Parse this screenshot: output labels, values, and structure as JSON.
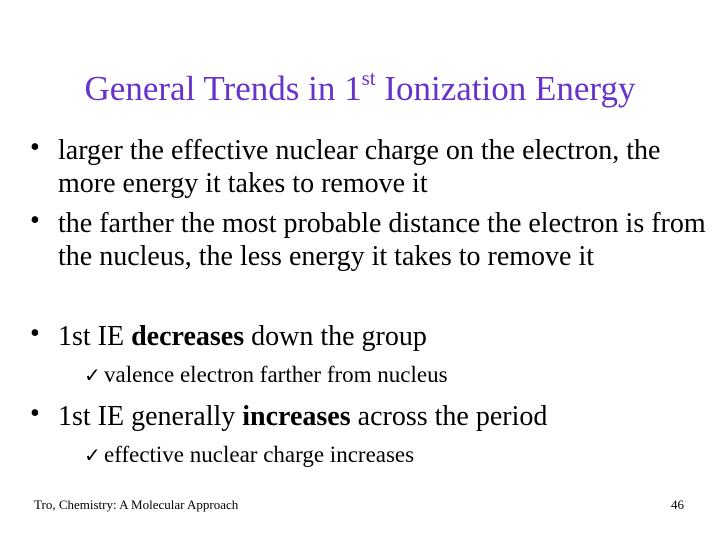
{
  "title": {
    "main": "General Trends in 1",
    "sup": "st",
    "rest": " Ionization Energy"
  },
  "bullets": [
    {
      "text": "larger the effective nuclear charge on the electron, the more energy it takes to remove it"
    },
    {
      "text": "the farther the most probable distance the electron is from the nucleus, the less energy it takes to remove it"
    },
    {
      "pre": "1st IE ",
      "bold": "decreases",
      "post": " down the group",
      "sub": "valence electron farther from nucleus"
    },
    {
      "pre": "1st IE generally ",
      "bold": "increases",
      "post": " across the period",
      "sub": "effective nuclear charge increases"
    }
  ],
  "bullet_glyph": "•",
  "check_glyph": "✓",
  "footer": "Tro, Chemistry: A Molecular Approach",
  "page_number": "46"
}
